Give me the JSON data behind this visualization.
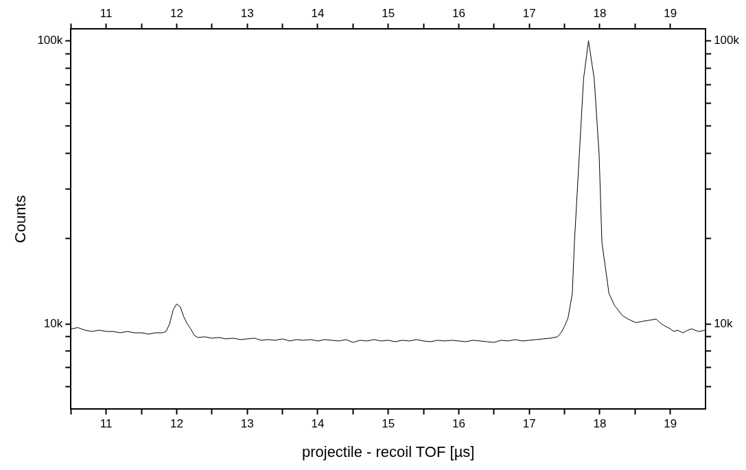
{
  "chart_data": {
    "type": "line",
    "xlabel": "projectile - recoil TOF [µs]",
    "ylabel": "Counts",
    "log": "y",
    "grid": false,
    "legend": false,
    "xlim": [
      10.5,
      19.5
    ],
    "xticks": [
      {
        "value": 10.5,
        "label": null
      },
      11,
      {
        "value": 11.5,
        "label": null
      },
      12,
      {
        "value": 12.5,
        "label": null
      },
      13,
      {
        "value": 13.5,
        "label": null
      },
      14,
      {
        "value": 14.5,
        "label": null
      },
      15,
      {
        "value": 15.5,
        "label": null
      },
      16,
      {
        "value": 16.5,
        "label": null
      },
      17,
      {
        "value": 17.5,
        "label": null
      },
      18,
      {
        "value": 18.5,
        "label": null
      },
      19
    ],
    "x2lim": [
      10.5,
      19.5
    ],
    "x2ticks": [
      {
        "value": 10.5,
        "label": null
      },
      11,
      {
        "value": 11.5,
        "label": null
      },
      12,
      {
        "value": 12.5,
        "label": null
      },
      13,
      {
        "value": 13.5,
        "label": null
      },
      14,
      {
        "value": 14.5,
        "label": null
      },
      15,
      {
        "value": 15.5,
        "label": null
      },
      16,
      {
        "value": 16.5,
        "label": null
      },
      17,
      {
        "value": 17.5,
        "label": null
      },
      18,
      {
        "value": 18.5,
        "label": null
      },
      19
    ],
    "ylim": [
      5000,
      110000
    ],
    "yticks": [
      {
        "value": 6000,
        "label": null
      },
      {
        "value": 7000,
        "label": null
      },
      {
        "value": 8000,
        "label": null
      },
      {
        "value": 9000,
        "label": null
      },
      {
        "value": 10000,
        "label": "10k"
      },
      {
        "value": 20000,
        "label": null
      },
      {
        "value": 30000,
        "label": null
      },
      {
        "value": 40000,
        "label": null
      },
      {
        "value": 50000,
        "label": null
      },
      {
        "value": 60000,
        "label": null
      },
      {
        "value": 70000,
        "label": null
      },
      {
        "value": 80000,
        "label": null
      },
      {
        "value": 90000,
        "label": null
      },
      {
        "value": 100000,
        "label": "100k"
      }
    ],
    "series": [
      {
        "color": "#000000",
        "x": [
          10.5,
          10.6,
          10.7,
          10.8,
          10.9,
          11.0,
          11.1,
          11.2,
          11.3,
          11.4,
          11.5,
          11.6,
          11.7,
          11.8,
          11.85,
          11.9,
          11.95,
          12.0,
          12.05,
          12.1,
          12.15,
          12.2,
          12.25,
          12.3,
          12.4,
          12.5,
          12.6,
          12.7,
          12.8,
          12.9,
          13.0,
          13.1,
          13.2,
          13.3,
          13.4,
          13.5,
          13.6,
          13.7,
          13.8,
          13.9,
          14.0,
          14.1,
          14.2,
          14.3,
          14.4,
          14.5,
          14.6,
          14.7,
          14.8,
          14.9,
          15.0,
          15.1,
          15.2,
          15.3,
          15.4,
          15.5,
          15.6,
          15.7,
          15.8,
          15.9,
          16.0,
          16.1,
          16.2,
          16.3,
          16.4,
          16.5,
          16.6,
          16.7,
          16.8,
          16.9,
          17.0,
          17.1,
          17.2,
          17.3,
          17.4,
          17.45,
          17.5,
          17.55,
          17.61,
          17.64,
          17.71,
          17.77,
          17.84,
          17.92,
          17.99,
          18.03,
          18.13,
          18.21,
          18.32,
          18.4,
          18.51,
          18.6,
          18.7,
          18.8,
          18.85,
          18.9,
          19.0,
          19.05,
          19.1,
          19.18,
          19.25,
          19.3,
          19.4,
          19.5
        ],
        "values": [
          9600,
          9700,
          9500,
          9400,
          9500,
          9400,
          9400,
          9300,
          9400,
          9300,
          9300,
          9200,
          9300,
          9300,
          9400,
          10000,
          11200,
          11750,
          11500,
          10600,
          10000,
          9600,
          9100,
          8950,
          9000,
          8900,
          8950,
          8850,
          8900,
          8800,
          8850,
          8900,
          8750,
          8800,
          8750,
          8850,
          8700,
          8800,
          8750,
          8800,
          8700,
          8800,
          8750,
          8700,
          8800,
          8600,
          8750,
          8700,
          8800,
          8700,
          8750,
          8650,
          8750,
          8700,
          8800,
          8700,
          8650,
          8750,
          8700,
          8750,
          8700,
          8650,
          8750,
          8700,
          8650,
          8600,
          8750,
          8700,
          8800,
          8700,
          8750,
          8800,
          8850,
          8900,
          9000,
          9300,
          9800,
          10500,
          12800,
          19400,
          39800,
          73600,
          100000,
          73600,
          39800,
          19400,
          12800,
          11600,
          10700,
          10400,
          10100,
          10200,
          10300,
          10400,
          10100,
          9900,
          9600,
          9400,
          9500,
          9300,
          9500,
          9600,
          9400,
          9500
        ]
      }
    ]
  }
}
